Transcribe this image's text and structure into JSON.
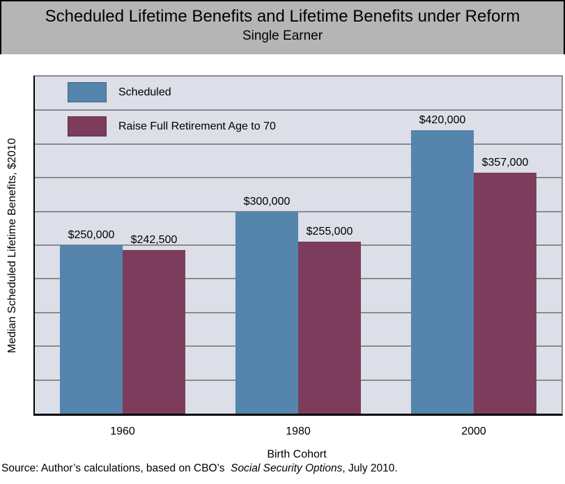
{
  "header": {
    "title": "Scheduled Lifetime Benefits and Lifetime Benefits under Reform",
    "subtitle": "Single Earner"
  },
  "chart_data": {
    "type": "bar",
    "title": "Scheduled Lifetime Benefits and Lifetime Benefits under Reform",
    "subtitle": "Single Earner",
    "categories": [
      "1960",
      "1980",
      "2000"
    ],
    "series": [
      {
        "name": "Scheduled",
        "color": "#5584ac",
        "values": [
          250000,
          300000,
          420000
        ],
        "labels": [
          "$250,000",
          "$300,000",
          "$420,000"
        ]
      },
      {
        "name": "Raise Full Retirement Age to 70",
        "color": "#7d3c5c",
        "values": [
          242500,
          255000,
          357000
        ],
        "labels": [
          "$242,500",
          "$255,000",
          "$357,000"
        ]
      }
    ],
    "xlabel": "Birth Cohort",
    "ylabel": "Median Scheduled Lifetime Benefits, $2010",
    "ylim": [
      0,
      500000
    ],
    "gridline_step": 50000,
    "grid": true,
    "y_tick_labels_shown": false,
    "legend_position": "top-left"
  },
  "source": {
    "prefix": "Source: Author’s calculations, based on CBO’s  ",
    "italic": "Social Security Options",
    "suffix": ", July 2010."
  },
  "colors": {
    "title_band": "#b5b5b5",
    "plot_background": "#dcdee8",
    "gridline": "#8a8a93",
    "axis": "#000000",
    "page_background": "#ffffff"
  }
}
